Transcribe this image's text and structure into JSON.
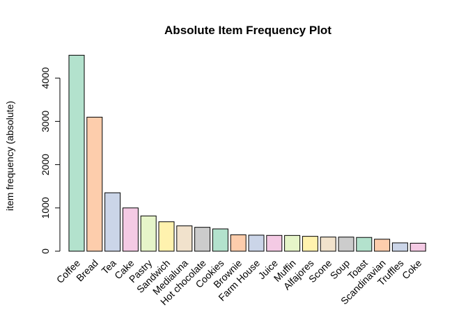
{
  "chart_data": {
    "type": "bar",
    "title": "Absolute Item Frequency Plot",
    "xlabel": "",
    "ylabel": "item frequency (absolute)",
    "ylim": [
      0,
      4550
    ],
    "yticks": [
      0,
      1000,
      2000,
      3000,
      4000
    ],
    "categories": [
      "Coffee",
      "Bread",
      "Tea",
      "Cake",
      "Pastry",
      "Sandwich",
      "Medialuna",
      "Hot chocolate",
      "Cookies",
      "Brownie",
      "Farm House",
      "Juice",
      "Muffin",
      "Alfajores",
      "Scone",
      "Soup",
      "Toast",
      "Scandinavian",
      "Truffles",
      "Coke"
    ],
    "values": [
      4528,
      3097,
      1350,
      1000,
      815,
      680,
      585,
      552,
      515,
      379,
      371,
      365,
      364,
      344,
      327,
      326,
      318,
      277,
      193,
      185
    ],
    "colors": [
      "#b3e2cd",
      "#fdcdac",
      "#cbd5e8",
      "#f4cae4",
      "#e6f5c9",
      "#fff2ae",
      "#f1e2cc",
      "#cccccc",
      "#b3e2cd",
      "#fdcdac",
      "#cbd5e8",
      "#f4cae4",
      "#e6f5c9",
      "#fff2ae",
      "#f1e2cc",
      "#cccccc",
      "#b3e2cd",
      "#fdcdac",
      "#cbd5e8",
      "#f4cae4"
    ],
    "grid": false,
    "legend": "none"
  }
}
